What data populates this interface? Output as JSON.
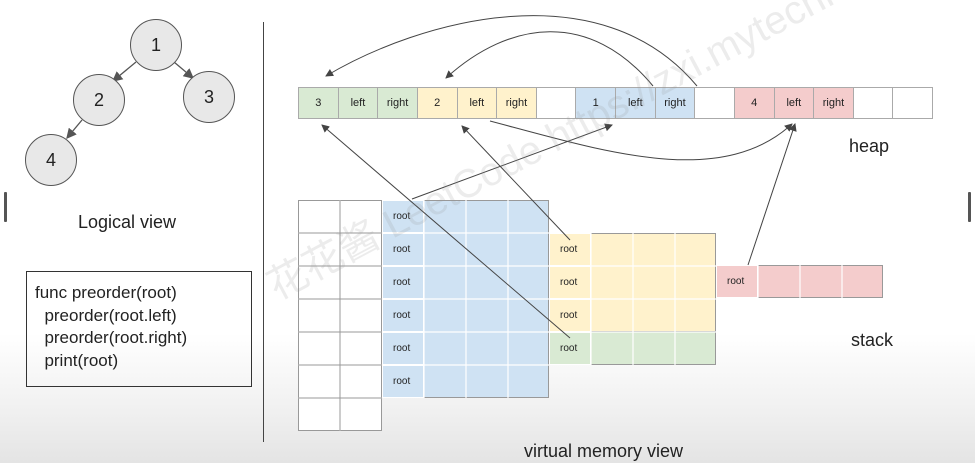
{
  "tree": {
    "nodes": [
      "1",
      "2",
      "3",
      "4"
    ],
    "caption": "Logical view"
  },
  "code": {
    "lines": [
      "func preorder(root)",
      "  preorder(root.left)",
      "  preorder(root.right)",
      "  print(root)"
    ]
  },
  "heap": {
    "label": "heap",
    "cells": [
      {
        "text": "3",
        "color": "#d9ead3"
      },
      {
        "text": "left",
        "color": "#d9ead3"
      },
      {
        "text": "right",
        "color": "#d9ead3"
      },
      {
        "text": "2",
        "color": "#fff2cc"
      },
      {
        "text": "left",
        "color": "#fff2cc"
      },
      {
        "text": "right",
        "color": "#fff2cc"
      },
      {
        "text": "",
        "color": "#ffffff"
      },
      {
        "text": "1",
        "color": "#cfe2f3"
      },
      {
        "text": "left",
        "color": "#cfe2f3"
      },
      {
        "text": "right",
        "color": "#cfe2f3"
      },
      {
        "text": "",
        "color": "#ffffff"
      },
      {
        "text": "4",
        "color": "#f4cccc"
      },
      {
        "text": "left",
        "color": "#f4cccc"
      },
      {
        "text": "right",
        "color": "#f4cccc"
      },
      {
        "text": "",
        "color": "#ffffff"
      },
      {
        "text": "",
        "color": "#ffffff"
      }
    ]
  },
  "stack": {
    "label": "stack",
    "frame_label": "root"
  },
  "caption": "virtual memory view",
  "watermark": "花花酱 LeetCode https://zxi.mytechroad.com/blog/",
  "colors": {
    "blue": "#cfe2f3",
    "yellow": "#fff2cc",
    "green": "#d9ead3",
    "red": "#f4cccc"
  }
}
